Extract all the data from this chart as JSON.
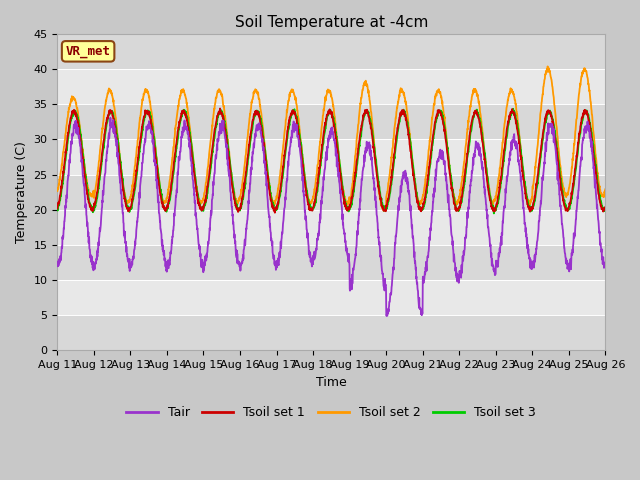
{
  "title": "Soil Temperature at -4cm",
  "xlabel": "Time",
  "ylabel": "Temperature (C)",
  "ylim": [
    0,
    45
  ],
  "annotation": "VR_met",
  "fig_bg_color": "#c8c8c8",
  "plot_bg_light": "#e8e8e8",
  "plot_bg_dark": "#d8d8d8",
  "title_fontsize": 11,
  "label_fontsize": 9,
  "tick_fontsize": 8,
  "legend_fontsize": 9,
  "line_colors": {
    "Tair": "#9933cc",
    "Tsoil set 1": "#cc0000",
    "Tsoil set 2": "#ff9900",
    "Tsoil set 3": "#00cc00"
  },
  "line_width": 1.3,
  "x_tick_labels": [
    "Aug 11",
    "Aug 12",
    "Aug 13",
    "Aug 14",
    "Aug 15",
    "Aug 16",
    "Aug 17",
    "Aug 18",
    "Aug 19",
    "Aug 20",
    "Aug 21",
    "Aug 22",
    "Aug 23",
    "Aug 24",
    "Aug 25",
    "Aug 26"
  ],
  "n_days": 15,
  "points_per_day": 144
}
